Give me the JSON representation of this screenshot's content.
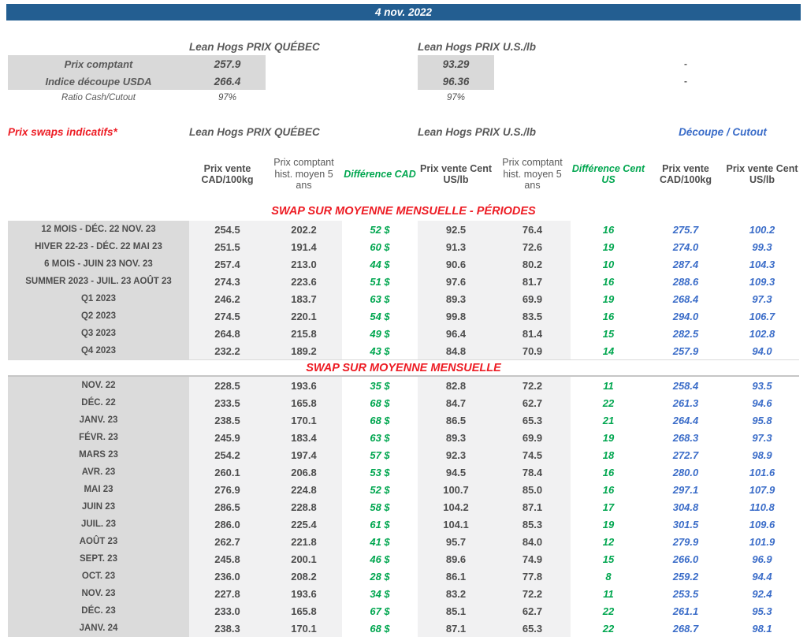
{
  "title_bar": {
    "date": "4 nov. 2022"
  },
  "colors": {
    "bar_blue": "#235e91",
    "red": "#ed1c24",
    "green": "#00a64f",
    "blue": "#3a6cc8",
    "dark_gray_text": "#4d4d4d",
    "label_bg": "#dbdbdb",
    "shade_bg": "#f1f1f2"
  },
  "spot": {
    "quebec_header": "Lean Hogs PRIX QUÉBEC",
    "us_header": "Lean Hogs PRIX U.S./lb",
    "rows": [
      {
        "label": "Prix comptant",
        "quebec": "257.9",
        "us": "93.29",
        "right": "-"
      },
      {
        "label": "Indice découpe USDA",
        "quebec": "266.4",
        "us": "96.36",
        "right": "-"
      },
      {
        "label": "Ratio Cash/Cutout",
        "quebec": "97%",
        "us": "97%",
        "right": ""
      }
    ]
  },
  "swaps": {
    "title": "Prix swaps indicatifs*",
    "quebec_header": "Lean Hogs PRIX QUÉBEC",
    "us_header": "Lean Hogs PRIX U.S./lb",
    "cutout_header": "Découpe / Cutout",
    "columns": [
      "Prix vente CAD/100kg",
      "Prix comptant hist. moyen 5 ans",
      "Différence CAD",
      "Prix vente Cent US/lb",
      "Prix comptant hist. moyen 5 ans",
      "Différence Cent US",
      "Prix vente CAD/100kg",
      "Prix vente Cent US/lb"
    ],
    "sections": [
      {
        "title": "SWAP SUR MOYENNE MENSUELLE - PÉRIODES",
        "rows": [
          [
            "12 MOIS - DÉC. 22 NOV. 23",
            "254.5",
            "202.2",
            "52 $",
            "92.5",
            "76.4",
            "16",
            "275.7",
            "100.2"
          ],
          [
            "HIVER 22-23 - DÉC. 22 MAI 23",
            "251.5",
            "191.4",
            "60 $",
            "91.3",
            "72.6",
            "19",
            "274.0",
            "99.3"
          ],
          [
            "6 MOIS - JUIN 23 NOV. 23",
            "257.4",
            "213.0",
            "44 $",
            "90.6",
            "80.2",
            "10",
            "287.4",
            "104.3"
          ],
          [
            "SUMMER 2023 - JUIL. 23 AOÛT 23",
            "274.3",
            "223.6",
            "51 $",
            "97.6",
            "81.7",
            "16",
            "288.6",
            "109.3"
          ],
          [
            "Q1 2023",
            "246.2",
            "183.7",
            "63 $",
            "89.3",
            "69.9",
            "19",
            "268.4",
            "97.3"
          ],
          [
            "Q2 2023",
            "274.5",
            "220.1",
            "54 $",
            "99.8",
            "83.5",
            "16",
            "294.0",
            "106.7"
          ],
          [
            "Q3 2023",
            "264.8",
            "215.8",
            "49 $",
            "96.4",
            "81.4",
            "15",
            "282.5",
            "102.8"
          ],
          [
            "Q4 2023",
            "232.2",
            "189.2",
            "43 $",
            "84.8",
            "70.9",
            "14",
            "257.9",
            "94.0"
          ]
        ]
      },
      {
        "title": "SWAP SUR MOYENNE MENSUELLE",
        "rows": [
          [
            "NOV. 22",
            "228.5",
            "193.6",
            "35 $",
            "82.8",
            "72.2",
            "11",
            "258.4",
            "93.5"
          ],
          [
            "DÉC. 22",
            "233.5",
            "165.8",
            "68 $",
            "84.7",
            "62.7",
            "22",
            "261.3",
            "94.6"
          ],
          [
            "JANV. 23",
            "238.5",
            "170.1",
            "68 $",
            "86.5",
            "65.3",
            "21",
            "264.4",
            "95.8"
          ],
          [
            "FÉVR. 23",
            "245.9",
            "183.4",
            "63 $",
            "89.3",
            "69.9",
            "19",
            "268.3",
            "97.3"
          ],
          [
            "MARS 23",
            "254.2",
            "197.4",
            "57 $",
            "92.3",
            "74.5",
            "18",
            "272.7",
            "98.9"
          ],
          [
            "AVR. 23",
            "260.1",
            "206.8",
            "53 $",
            "94.5",
            "78.4",
            "16",
            "280.0",
            "101.6"
          ],
          [
            "MAI 23",
            "276.9",
            "224.8",
            "52 $",
            "100.7",
            "85.0",
            "16",
            "297.1",
            "107.9"
          ],
          [
            "JUIN 23",
            "286.5",
            "228.8",
            "58 $",
            "104.2",
            "87.1",
            "17",
            "304.8",
            "110.8"
          ],
          [
            "JUIL. 23",
            "286.0",
            "225.4",
            "61 $",
            "104.1",
            "85.3",
            "19",
            "301.5",
            "109.6"
          ],
          [
            "AOÛT 23",
            "262.7",
            "221.8",
            "41 $",
            "95.7",
            "84.0",
            "12",
            "279.9",
            "101.9"
          ],
          [
            "SEPT. 23",
            "245.8",
            "200.1",
            "46 $",
            "89.6",
            "74.9",
            "15",
            "266.0",
            "96.9"
          ],
          [
            "OCT. 23",
            "236.0",
            "208.2",
            "28 $",
            "86.1",
            "77.8",
            "8",
            "259.2",
            "94.4"
          ],
          [
            "NOV. 23",
            "227.8",
            "193.6",
            "34 $",
            "83.2",
            "72.2",
            "11",
            "253.5",
            "92.4"
          ],
          [
            "DÉC. 23",
            "233.0",
            "165.8",
            "67 $",
            "85.1",
            "62.7",
            "22",
            "261.1",
            "95.3"
          ],
          [
            "JANV. 24",
            "238.3",
            "170.1",
            "68 $",
            "87.1",
            "65.3",
            "22",
            "268.7",
            "98.1"
          ]
        ]
      }
    ]
  }
}
